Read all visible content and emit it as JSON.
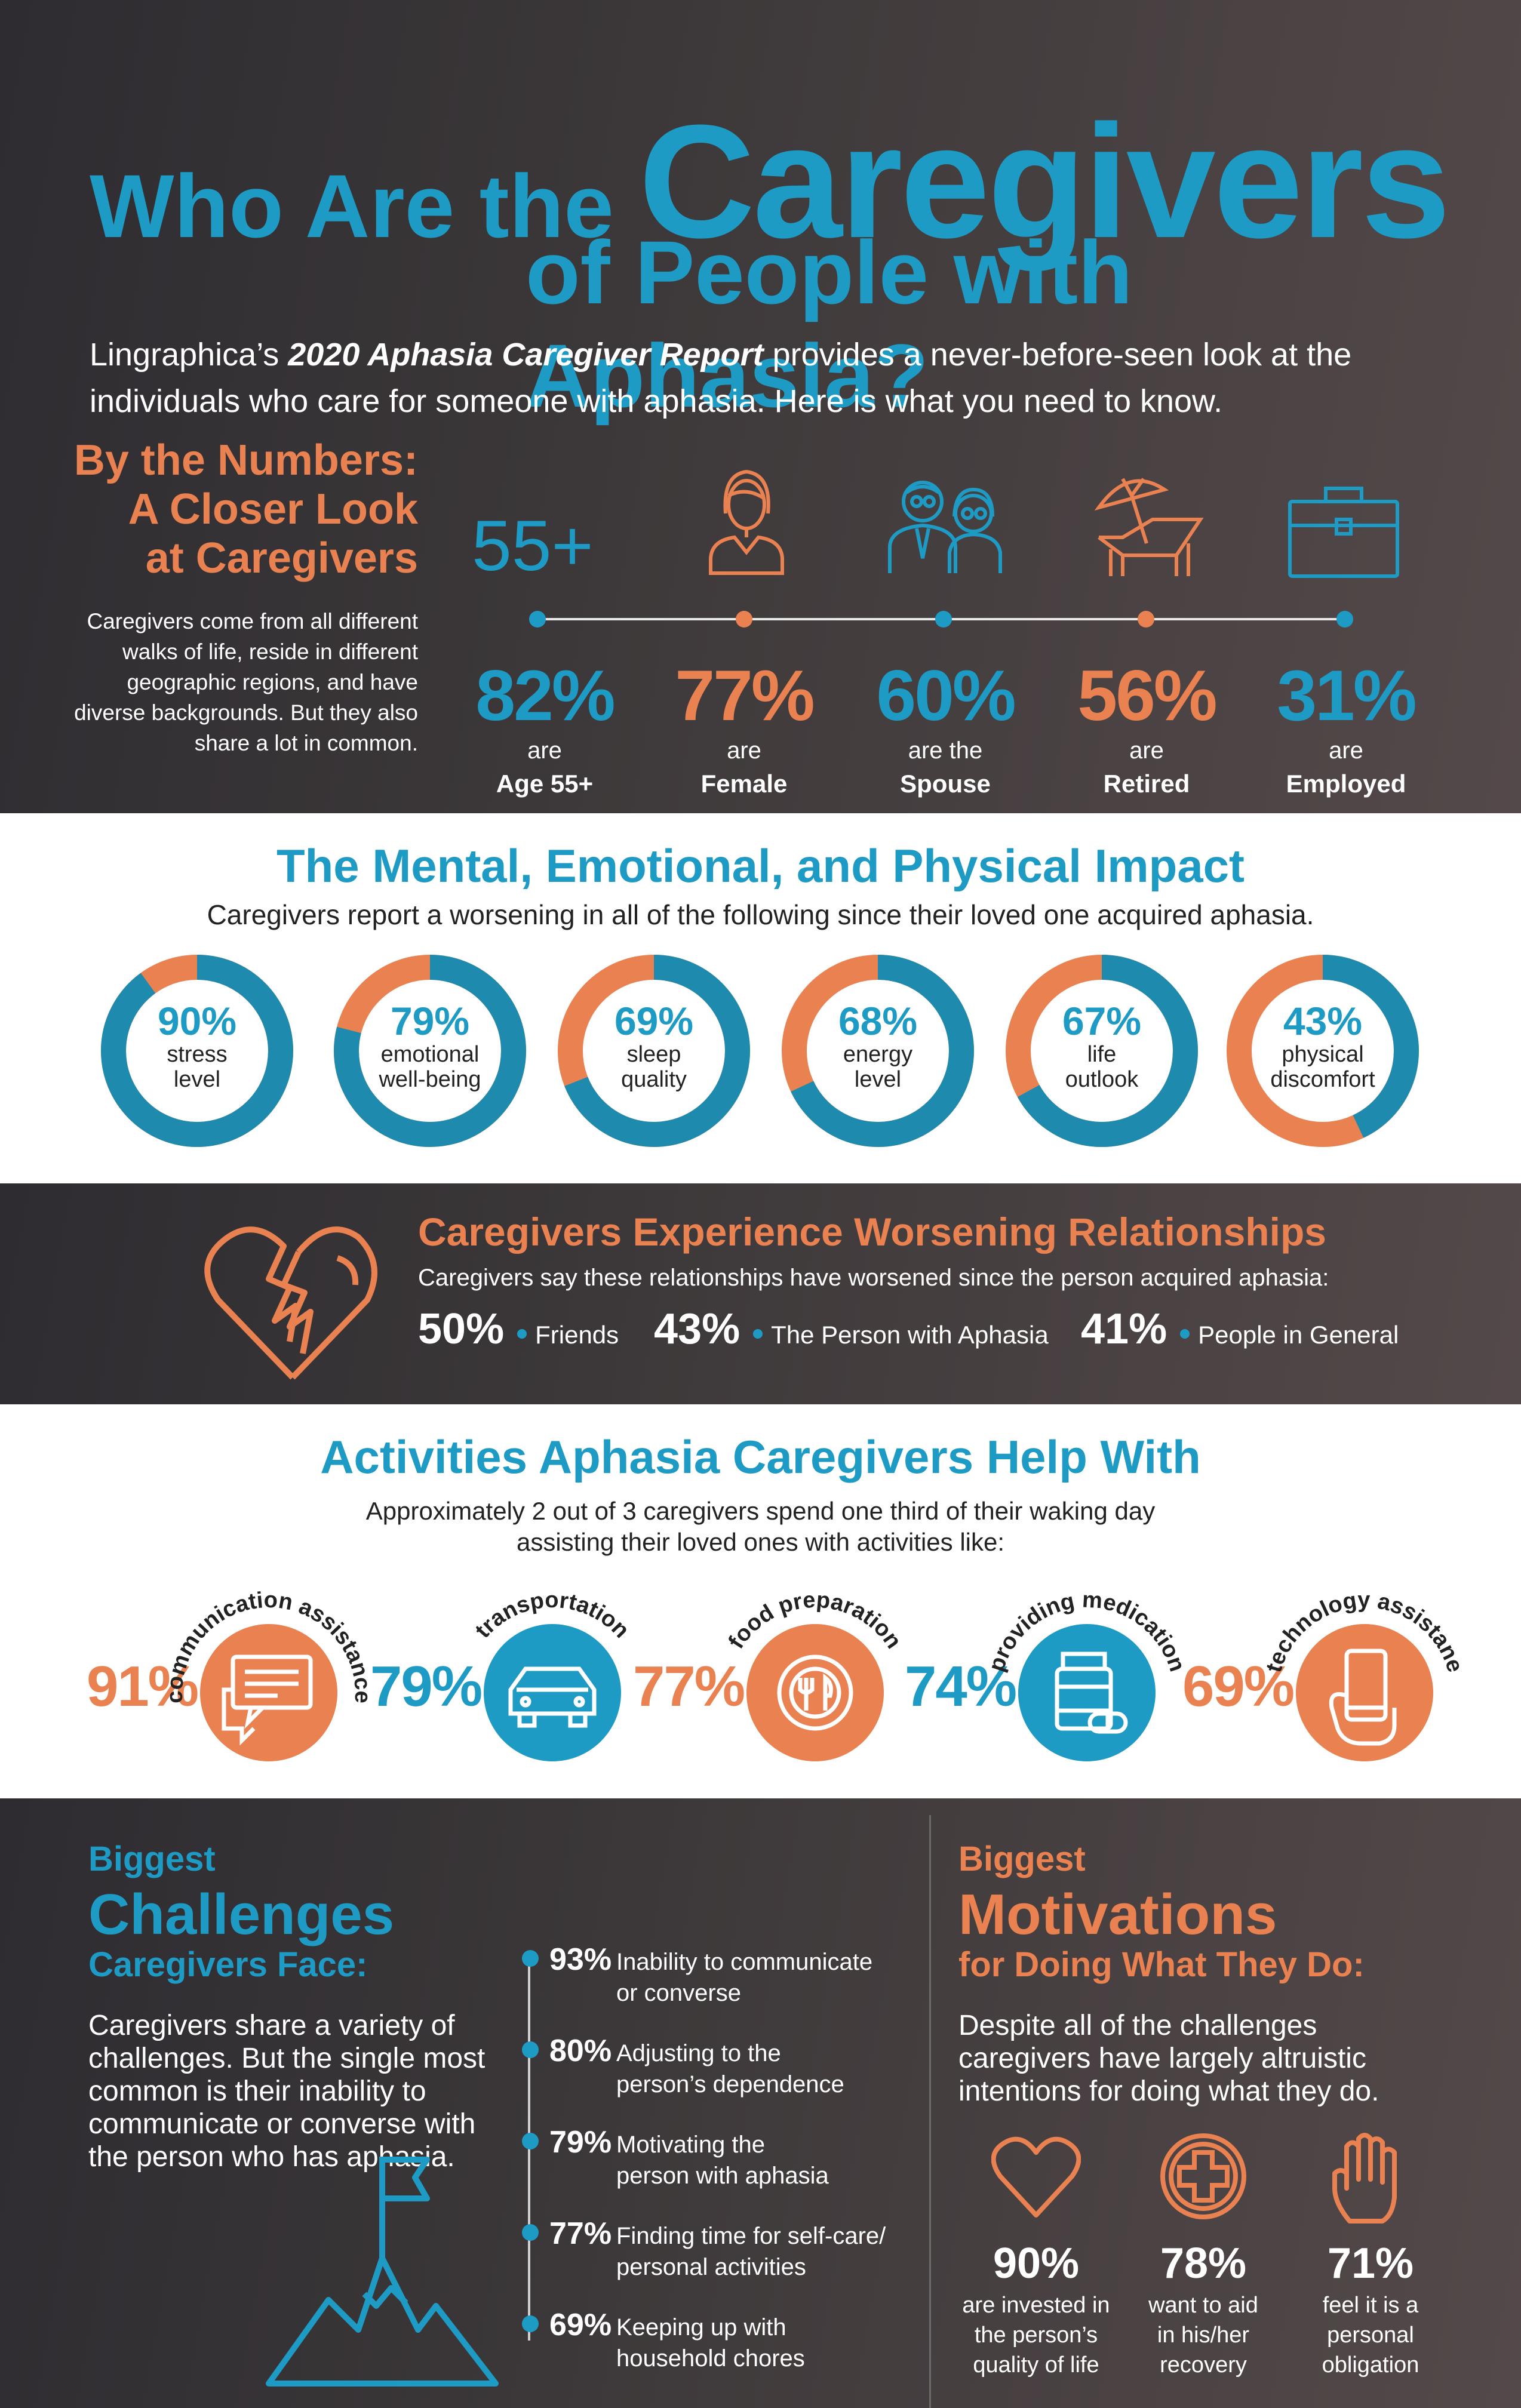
{
  "header": {
    "title_part1": "Who Are the",
    "title_part2": "Caregivers",
    "title_part3": "of People with Aphasia?",
    "intro_a": "Lingraphica’s ",
    "intro_report": "2020 Aphasia Caregiver Report",
    "intro_b": " provides a never-before-seen look at the individuals who care for someone with aphasia. Here is what you need to know."
  },
  "by_numbers": {
    "title_l1": "By the Numbers:",
    "title_l2": "A Closer Look",
    "title_l3": "at Caregivers",
    "text": "Caregivers come from all different walks of life, reside in different geographic regions, and have diverse backgrounds. But they also share a lot in common.",
    "age_label": "55+",
    "stats": [
      {
        "pct": "82%",
        "l1": "are",
        "l2": "Age 55+",
        "color": "#1e9bc5",
        "icon": "age-icon"
      },
      {
        "pct": "77%",
        "l1": "are",
        "l2": "Female",
        "color": "#e98150",
        "icon": "female-icon"
      },
      {
        "pct": "60%",
        "l1": "are the",
        "l2": "Spouse",
        "color": "#1e9bc5",
        "icon": "couple-icon"
      },
      {
        "pct": "56%",
        "l1": "are",
        "l2": "Retired",
        "color": "#e98150",
        "icon": "beach-chair-icon"
      },
      {
        "pct": "31%",
        "l1": "are",
        "l2": "Employed",
        "color": "#1e9bc5",
        "icon": "briefcase-icon"
      }
    ]
  },
  "impact": {
    "title": "The Mental, Emotional, and Physical Impact",
    "subtitle": "Caregivers report a worsening in all of the following since their loved one acquired aphasia.",
    "items": [
      {
        "pct": "90%",
        "value": 90,
        "label_l1": "stress",
        "label_l2": "level"
      },
      {
        "pct": "79%",
        "value": 79,
        "label_l1": "emotional",
        "label_l2": "well-being"
      },
      {
        "pct": "69%",
        "value": 69,
        "label_l1": "sleep",
        "label_l2": "quality"
      },
      {
        "pct": "68%",
        "value": 68,
        "label_l1": "energy",
        "label_l2": "level"
      },
      {
        "pct": "67%",
        "value": 67,
        "label_l1": "life",
        "label_l2": "outlook"
      },
      {
        "pct": "43%",
        "value": 43,
        "label_l1": "physical",
        "label_l2": "discomfort"
      }
    ]
  },
  "relationships": {
    "title": "Caregivers Experience Worsening Relationships",
    "subtitle": "Caregivers say these relationships have worsened since the person acquired aphasia:",
    "items": [
      {
        "pct": "50%",
        "label": "Friends"
      },
      {
        "pct": "43%",
        "label": "The Person with Aphasia"
      },
      {
        "pct": "41%",
        "label": "People in General"
      }
    ]
  },
  "activities": {
    "title": "Activities Aphasia Caregivers Help With",
    "subtitle_l1": "Approximately 2 out of 3 caregivers spend one third of their waking day",
    "subtitle_l2": "assisting their loved ones with activities like:",
    "items": [
      {
        "pct": "91%",
        "label": "communication assistance",
        "color": "#e98150",
        "icon": "chat-icon"
      },
      {
        "pct": "79%",
        "label": "transportation",
        "color": "#1e9bc5",
        "icon": "car-icon"
      },
      {
        "pct": "77%",
        "label": "food preparation",
        "color": "#e98150",
        "icon": "plate-icon"
      },
      {
        "pct": "74%",
        "label": "providing medication",
        "color": "#1e9bc5",
        "icon": "pill-bottle-icon"
      },
      {
        "pct": "69%",
        "label": "technology assistane",
        "color": "#e98150",
        "icon": "phone-icon"
      }
    ]
  },
  "challenges": {
    "biggest": "Biggest",
    "title": "Challenges",
    "subtitle": "Caregivers Face:",
    "text": "Caregivers share a variety of challenges. But the single most common is their inability to communicate or converse with the person who has aphasia.",
    "items": [
      {
        "pct": "93%",
        "l1": "Inability to communicate",
        "l2": "or converse"
      },
      {
        "pct": "80%",
        "l1": "Adjusting to the",
        "l2": "person’s dependence"
      },
      {
        "pct": "79%",
        "l1": "Motivating the",
        "l2": "person with aphasia"
      },
      {
        "pct": "77%",
        "l1": "Finding time for self-care/",
        "l2": "personal activities"
      },
      {
        "pct": "69%",
        "l1": "Keeping up with",
        "l2": "household chores"
      }
    ]
  },
  "motivations": {
    "biggest": "Biggest",
    "title": "Motivations",
    "subtitle": "for Doing What They Do:",
    "text": "Despite all of the challenges caregivers have largely altruistic intentions for doing what they do.",
    "items": [
      {
        "pct": "90%",
        "l1": "are invested in",
        "l2": "the person’s",
        "l3": "quality of life",
        "icon": "heart-icon"
      },
      {
        "pct": "78%",
        "l1": "want to aid",
        "l2": "in his/her",
        "l3": "recovery",
        "icon": "medical-cross-icon"
      },
      {
        "pct": "71%",
        "l1": "feel it is a",
        "l2": "personal",
        "l3": "obligation",
        "icon": "hand-icon"
      }
    ]
  },
  "colors": {
    "blue": "#1e9bc5",
    "orange": "#e98150",
    "track": "#1e8aad"
  }
}
